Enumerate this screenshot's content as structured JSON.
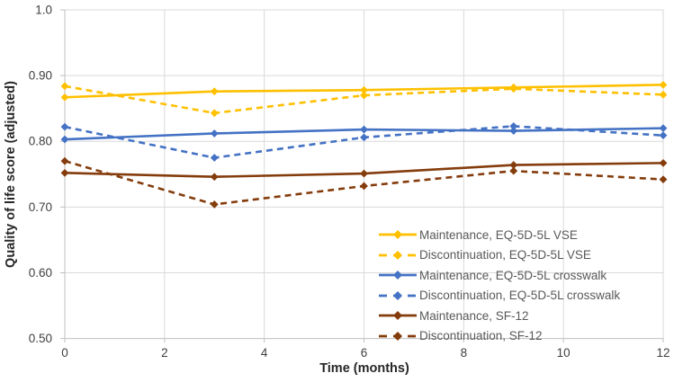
{
  "chart_data": {
    "type": "line",
    "title": "",
    "xlabel": "Time (months)",
    "ylabel": "Quality of life score (adjusted)",
    "xlim": [
      0,
      12
    ],
    "ylim": [
      0.5,
      1.0
    ],
    "grid": true,
    "legend_position": "inside-bottom-right",
    "marker": "diamond",
    "x_ticks": [
      {
        "value": 0,
        "label": "0"
      },
      {
        "value": 2,
        "label": "2"
      },
      {
        "value": 4,
        "label": "4"
      },
      {
        "value": 6,
        "label": "6"
      },
      {
        "value": 8,
        "label": "8"
      },
      {
        "value": 10,
        "label": "10"
      },
      {
        "value": 12,
        "label": "12"
      }
    ],
    "y_ticks": [
      {
        "value": 1.0,
        "label": "1.0"
      },
      {
        "value": 0.9,
        "label": "0.90"
      },
      {
        "value": 0.8,
        "label": "0.80"
      },
      {
        "value": 0.7,
        "label": "0.70"
      },
      {
        "value": 0.6,
        "label": "0.60"
      },
      {
        "value": 0.5,
        "label": "0.50"
      }
    ],
    "x": [
      0,
      3,
      6,
      9,
      12
    ],
    "series": [
      {
        "name": "Maintenance, EQ-5D-5L VSE",
        "color": "#FFC000",
        "style": "solid",
        "values": [
          0.867,
          0.876,
          0.878,
          0.882,
          0.886
        ]
      },
      {
        "name": "Discontinuation, EQ-5D-5L VSE",
        "color": "#FFC000",
        "style": "dashed",
        "values": [
          0.884,
          0.843,
          0.87,
          0.88,
          0.871
        ]
      },
      {
        "name": "Maintenance, EQ-5D-5L crosswalk",
        "color": "#4472C4",
        "style": "solid",
        "values": [
          0.803,
          0.812,
          0.818,
          0.816,
          0.82
        ]
      },
      {
        "name": "Discontinuation, EQ-5D-5L crosswalk",
        "color": "#4472C4",
        "style": "dashed",
        "values": [
          0.822,
          0.775,
          0.806,
          0.823,
          0.809
        ]
      },
      {
        "name": "Maintenance, SF-12",
        "color": "#843C0C",
        "style": "solid",
        "values": [
          0.752,
          0.746,
          0.751,
          0.764,
          0.767
        ]
      },
      {
        "name": "Discontinuation, SF-12",
        "color": "#843C0C",
        "style": "dashed",
        "values": [
          0.77,
          0.704,
          0.732,
          0.755,
          0.742
        ]
      }
    ],
    "colors": {
      "gridline": "#D9D9D9",
      "axis_line": "#BFBFBF",
      "tick_text": "#404040",
      "legend_text": "#595959",
      "axis_title_text": "#262626",
      "background": "#FFFFFF"
    }
  }
}
